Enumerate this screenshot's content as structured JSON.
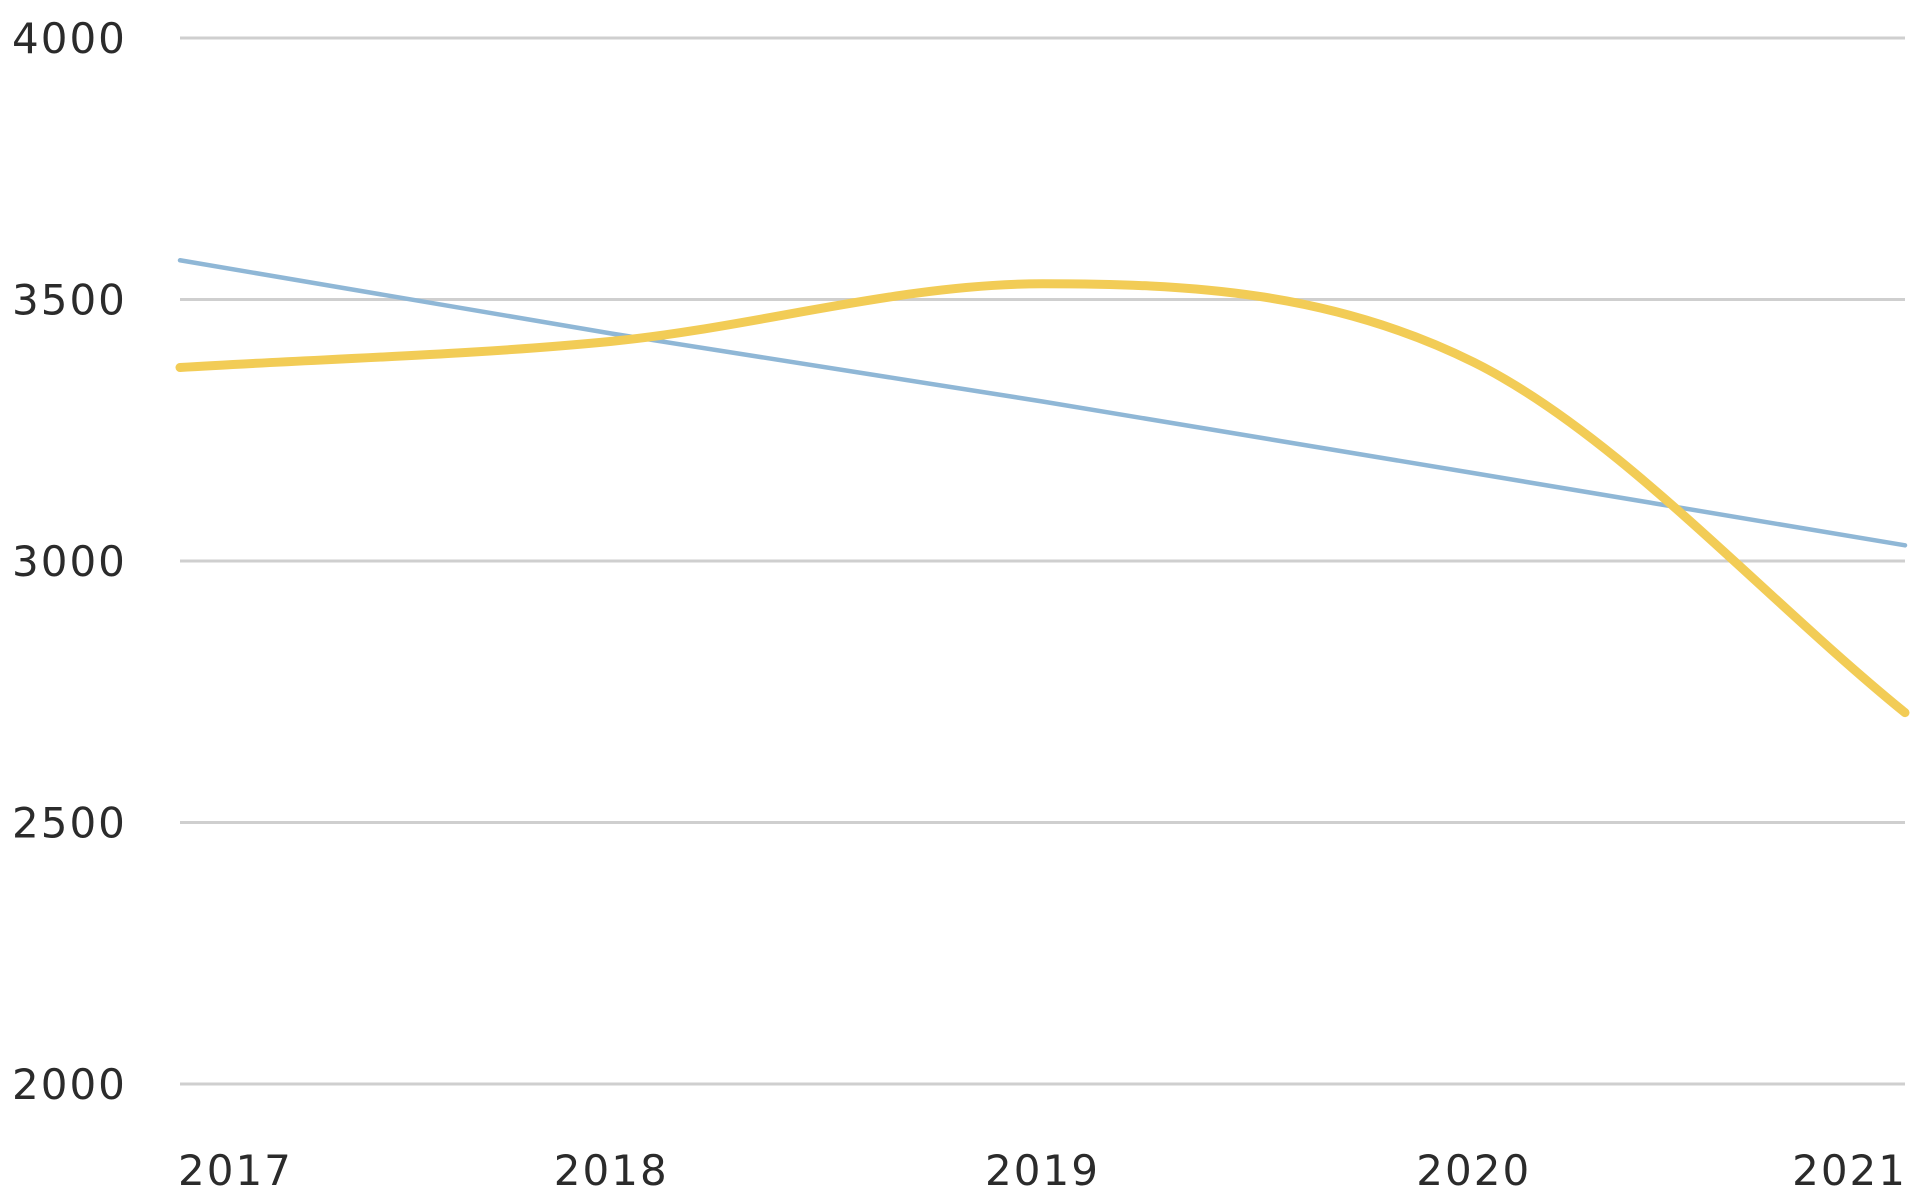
{
  "chart_data": {
    "type": "line",
    "title": "",
    "xlabel": "",
    "ylabel": "",
    "categories": [
      "2017",
      "2018",
      "2019",
      "2020",
      "2021"
    ],
    "ylim": [
      2000,
      4000
    ],
    "y_ticks": [
      "4000",
      "3500",
      "3000",
      "2500",
      "2000"
    ],
    "grid": true,
    "legend": "none",
    "series": [
      {
        "values": [
          3370,
          3420,
          3530,
          3380,
          2710
        ],
        "color": "#f2cc56",
        "smooth": true
      },
      {
        "values": [
          3575,
          3435,
          3305,
          3168,
          3030
        ],
        "color": "#8fb7d6",
        "smooth": false
      }
    ]
  }
}
